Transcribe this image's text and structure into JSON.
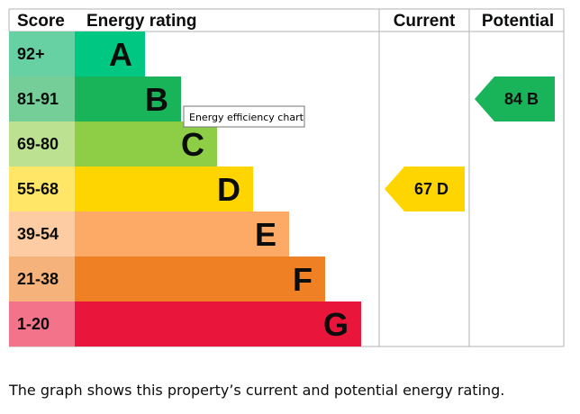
{
  "chart_data": {
    "type": "bar",
    "headers": {
      "score": "Score",
      "rating": "Energy rating",
      "current": "Current",
      "potential": "Potential"
    },
    "bands": [
      {
        "score": "92+",
        "letter": "A",
        "color": "#00c781",
        "score_bg": "#67d1a4"
      },
      {
        "score": "81-91",
        "letter": "B",
        "color": "#19b459",
        "score_bg": "#75ce98"
      },
      {
        "score": "69-80",
        "letter": "C",
        "color": "#8dce46",
        "score_bg": "#bbe191"
      },
      {
        "score": "55-68",
        "letter": "D",
        "color": "#ffd500",
        "score_bg": "#ffe666"
      },
      {
        "score": "39-54",
        "letter": "E",
        "color": "#fcaa65",
        "score_bg": "#fdcca3"
      },
      {
        "score": "21-38",
        "letter": "F",
        "color": "#ef8023",
        "score_bg": "#f5b37b"
      },
      {
        "score": "1-20",
        "letter": "G",
        "color": "#e9153b",
        "score_bg": "#f2738a"
      }
    ],
    "current": {
      "value": 67,
      "letter": "D",
      "color": "#ffd500"
    },
    "potential": {
      "value": 84,
      "letter": "B",
      "color": "#19b459"
    },
    "grid_color": "#b1b4b6"
  },
  "tooltip": "Energy efficiency chart",
  "caption": "The graph shows this property’s current and potential energy rating."
}
